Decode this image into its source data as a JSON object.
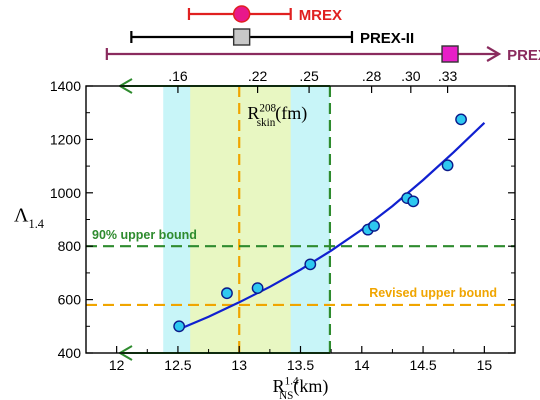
{
  "chart_data": {
    "type": "scatter",
    "xlabel": {
      "main": "R",
      "sub": "NS",
      "sup": "1.4",
      "unit": "(km)"
    },
    "ylabel": {
      "main": "Λ",
      "sub": "1.4"
    },
    "top_axis_label": {
      "main": "R",
      "sub": "skin",
      "sup": "208",
      "unit": "(fm)"
    },
    "xlim": [
      11.75,
      15.25
    ],
    "ylim": [
      400,
      1400
    ],
    "x_ticks": [
      12,
      12.5,
      13,
      13.5,
      14,
      14.5,
      15
    ],
    "x_tick_labels": [
      "12",
      "12.5",
      "13",
      "13.5",
      "14",
      "14.5",
      "15"
    ],
    "y_ticks": [
      400,
      600,
      800,
      1000,
      1200,
      1400
    ],
    "y_tick_labels": [
      "400",
      "600",
      "800",
      "1000",
      "1200",
      "1400"
    ],
    "top_ticks": [
      {
        "label": ".16",
        "x": 12.5
      },
      {
        "label": ".22",
        "x": 13.15
      },
      {
        "label": ".25",
        "x": 13.57
      },
      {
        "label": ".28",
        "x": 14.08
      },
      {
        "label": ".30",
        "x": 14.4
      },
      {
        "label": ".33",
        "x": 14.7
      }
    ],
    "points": [
      {
        "x": 12.51,
        "y": 500
      },
      {
        "x": 12.9,
        "y": 624
      },
      {
        "x": 13.15,
        "y": 643
      },
      {
        "x": 13.58,
        "y": 732
      },
      {
        "x": 14.05,
        "y": 862
      },
      {
        "x": 14.1,
        "y": 876
      },
      {
        "x": 14.37,
        "y": 980
      },
      {
        "x": 14.42,
        "y": 968
      },
      {
        "x": 14.7,
        "y": 1103
      },
      {
        "x": 14.81,
        "y": 1275
      }
    ],
    "fit_curve": [
      {
        "x": 12.5,
        "y": 487
      },
      {
        "x": 12.75,
        "y": 536
      },
      {
        "x": 13.0,
        "y": 590
      },
      {
        "x": 13.25,
        "y": 648
      },
      {
        "x": 13.5,
        "y": 712
      },
      {
        "x": 13.75,
        "y": 783
      },
      {
        "x": 14.0,
        "y": 862
      },
      {
        "x": 14.25,
        "y": 950
      },
      {
        "x": 14.5,
        "y": 1048
      },
      {
        "x": 14.75,
        "y": 1152
      },
      {
        "x": 15.0,
        "y": 1262
      }
    ],
    "bands": [
      {
        "x0": 12.38,
        "x1": 13.74,
        "color": "#c8f5f8"
      },
      {
        "x0": 12.6,
        "x1": 13.42,
        "color": "#e8f7c2"
      }
    ],
    "hlines": [
      {
        "y": 800,
        "color": "#2e8b2e",
        "label": "90% upper bound"
      },
      {
        "y": 580,
        "color": "#f0a500",
        "label": "Revised upper bound"
      }
    ],
    "vlines": [
      {
        "x": 13.0,
        "color": "#f0a500"
      },
      {
        "x": 13.74,
        "color": "#2e8b2e"
      }
    ],
    "arrows": [
      {
        "y": 1400,
        "color": "#2e8b2e"
      },
      {
        "y": 400,
        "color": "#2e8b2e"
      }
    ],
    "error_bars": [
      {
        "label": "MREX",
        "center": 13.02,
        "lo": 12.59,
        "hi": 13.42,
        "marker": "circle",
        "color": "#e8188a",
        "line_color": "#e02020",
        "text_color": "#e02020"
      },
      {
        "label": "PREX-II",
        "center": 13.02,
        "lo": 12.12,
        "hi": 13.92,
        "marker": "square",
        "color": "#c8c8c8",
        "line_color": "#000000",
        "text_color": "#000000"
      },
      {
        "label": "PREX",
        "center": 14.72,
        "lo": 11.92,
        "hi": 15.12,
        "marker": "square",
        "color": "#e81fc8",
        "line_color": "#8a2b5e",
        "text_color": "#8a2b5e"
      }
    ],
    "colors": {
      "point_fill": "#2ec8f0",
      "point_stroke": "#0a1a8a",
      "curve": "#1020d0"
    },
    "grid": false
  }
}
